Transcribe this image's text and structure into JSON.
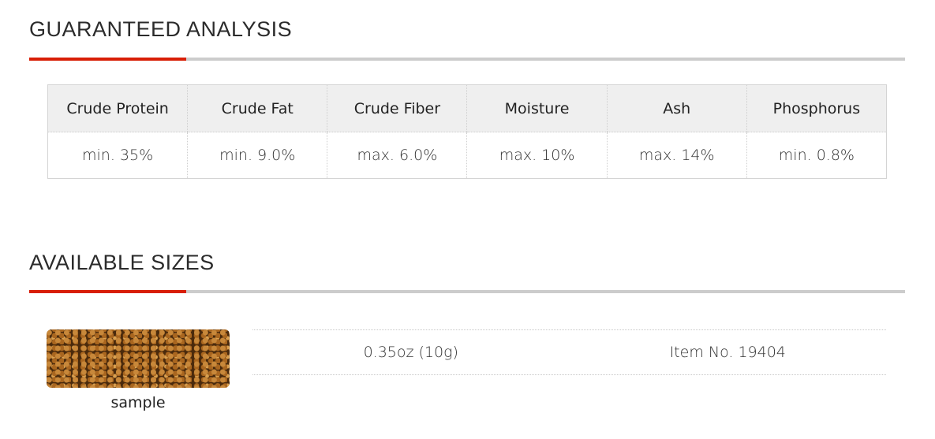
{
  "analysis": {
    "title": "GUARANTEED ANALYSIS",
    "headers": [
      "Crude Protein",
      "Crude Fat",
      "Crude Fiber",
      "Moisture",
      "Ash",
      "Phosphorus"
    ],
    "values": [
      "min. 35%",
      "min. 9.0%",
      "max. 6.0%",
      "max. 10%",
      "max. 14%",
      "min. 0.8%"
    ]
  },
  "sizes": {
    "title": "AVAILABLE SIZES",
    "image_label": "sample",
    "items": [
      {
        "size": "0.35oz (10g)",
        "item_no": "Item No. 19404"
      }
    ]
  },
  "colors": {
    "accent": "#d81e05",
    "rule": "#cccccc",
    "header_bg": "#efefef"
  }
}
